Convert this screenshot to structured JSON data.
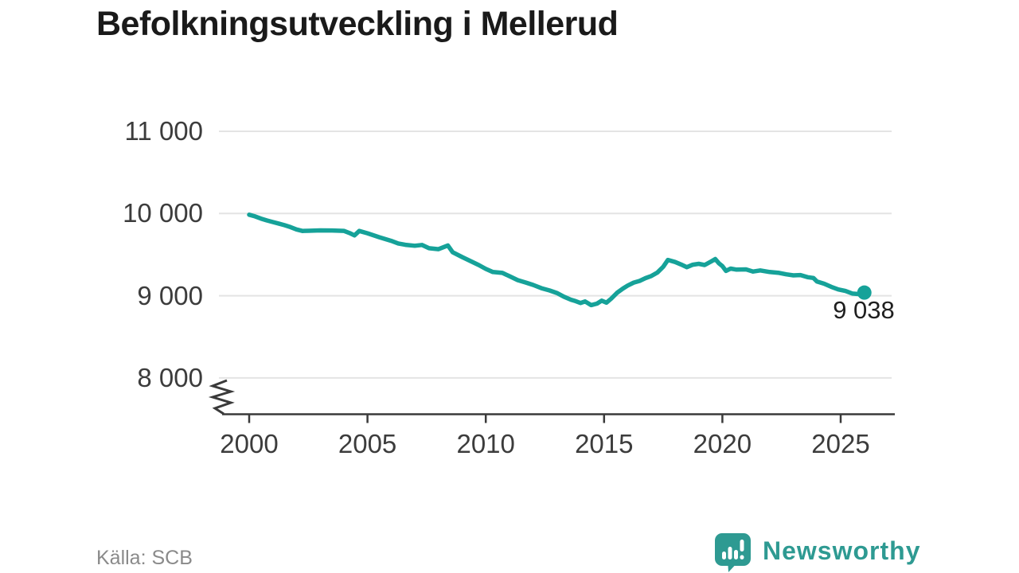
{
  "header": {
    "title": "Befolkningsutveckling i Mellerud"
  },
  "footer": {
    "source_label": "Källa: SCB",
    "brand_name": "Newsworthy"
  },
  "chart_data": {
    "type": "line",
    "title": "Befolkningsutveckling i Mellerud",
    "xlabel": "",
    "ylabel": "",
    "grid": "horizontal",
    "legend": "none",
    "axis_break": true,
    "x_range_years": [
      2000,
      2026
    ],
    "ylim_displayed": [
      7800,
      11000
    ],
    "y_ticks": [
      {
        "value": 11000,
        "label": "11 000"
      },
      {
        "value": 10000,
        "label": "10 000"
      },
      {
        "value": 9000,
        "label": "9 000"
      },
      {
        "value": 8000,
        "label": "8 000"
      }
    ],
    "x_ticks": [
      {
        "value": 2000,
        "label": "2000"
      },
      {
        "value": 2005,
        "label": "2005"
      },
      {
        "value": 2010,
        "label": "2010"
      },
      {
        "value": 2015,
        "label": "2015"
      },
      {
        "value": 2020,
        "label": "2020"
      },
      {
        "value": 2025,
        "label": "2025"
      }
    ],
    "latest_point": {
      "year": 2026,
      "value": 9038,
      "label": "9 038"
    },
    "series": [
      {
        "name": "Befolkning i Mellerud",
        "points": [
          [
            2000,
            9985
          ],
          [
            2000.25,
            9965
          ],
          [
            2000.5,
            9938
          ],
          [
            2000.75,
            9916
          ],
          [
            2001,
            9896
          ],
          [
            2001.25,
            9878
          ],
          [
            2001.5,
            9858
          ],
          [
            2001.75,
            9834
          ],
          [
            2002,
            9806
          ],
          [
            2002.25,
            9788
          ],
          [
            2002.5,
            9790
          ],
          [
            2003,
            9795
          ],
          [
            2003.5,
            9794
          ],
          [
            2004,
            9789
          ],
          [
            2004.25,
            9762
          ],
          [
            2004.45,
            9734
          ],
          [
            2004.65,
            9788
          ],
          [
            2005,
            9760
          ],
          [
            2005.5,
            9712
          ],
          [
            2006,
            9668
          ],
          [
            2006.3,
            9636
          ],
          [
            2006.6,
            9620
          ],
          [
            2007,
            9608
          ],
          [
            2007.3,
            9618
          ],
          [
            2007.6,
            9578
          ],
          [
            2008,
            9566
          ],
          [
            2008.4,
            9612
          ],
          [
            2008.6,
            9530
          ],
          [
            2009,
            9470
          ],
          [
            2009.35,
            9422
          ],
          [
            2009.7,
            9374
          ],
          [
            2010,
            9326
          ],
          [
            2010.3,
            9288
          ],
          [
            2010.7,
            9278
          ],
          [
            2011,
            9238
          ],
          [
            2011.35,
            9190
          ],
          [
            2011.7,
            9160
          ],
          [
            2012,
            9132
          ],
          [
            2012.35,
            9092
          ],
          [
            2012.7,
            9064
          ],
          [
            2013,
            9034
          ],
          [
            2013.3,
            8988
          ],
          [
            2013.6,
            8952
          ],
          [
            2013.8,
            8934
          ],
          [
            2014,
            8912
          ],
          [
            2014.2,
            8930
          ],
          [
            2014.45,
            8886
          ],
          [
            2014.7,
            8904
          ],
          [
            2014.9,
            8940
          ],
          [
            2015.1,
            8916
          ],
          [
            2015.3,
            8964
          ],
          [
            2015.55,
            9036
          ],
          [
            2015.8,
            9088
          ],
          [
            2016,
            9124
          ],
          [
            2016.25,
            9160
          ],
          [
            2016.5,
            9180
          ],
          [
            2016.75,
            9214
          ],
          [
            2017,
            9240
          ],
          [
            2017.25,
            9282
          ],
          [
            2017.5,
            9352
          ],
          [
            2017.7,
            9436
          ],
          [
            2018,
            9410
          ],
          [
            2018.25,
            9380
          ],
          [
            2018.5,
            9348
          ],
          [
            2018.75,
            9378
          ],
          [
            2019,
            9388
          ],
          [
            2019.25,
            9374
          ],
          [
            2019.5,
            9412
          ],
          [
            2019.7,
            9446
          ],
          [
            2019.85,
            9396
          ],
          [
            2020,
            9360
          ],
          [
            2020.15,
            9302
          ],
          [
            2020.35,
            9330
          ],
          [
            2020.6,
            9318
          ],
          [
            2021,
            9320
          ],
          [
            2021.3,
            9294
          ],
          [
            2021.6,
            9308
          ],
          [
            2022,
            9288
          ],
          [
            2022.4,
            9278
          ],
          [
            2022.7,
            9260
          ],
          [
            2023,
            9248
          ],
          [
            2023.3,
            9252
          ],
          [
            2023.6,
            9226
          ],
          [
            2023.85,
            9216
          ],
          [
            2024,
            9172
          ],
          [
            2024.3,
            9146
          ],
          [
            2024.6,
            9108
          ],
          [
            2024.9,
            9076
          ],
          [
            2025.2,
            9058
          ],
          [
            2025.5,
            9026
          ],
          [
            2025.75,
            9020
          ],
          [
            2026,
            9038
          ]
        ]
      }
    ],
    "colors": {
      "line": "#16a299",
      "brand": "#2e9a92",
      "grid": "#e4e4e4",
      "axis": "#3a3a3a",
      "text": "#3c3c3c",
      "muted": "#8a8a8a"
    }
  }
}
